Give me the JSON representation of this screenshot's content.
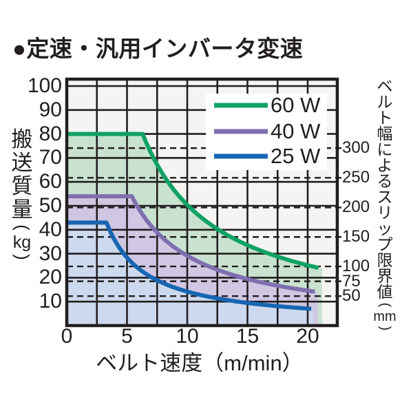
{
  "title": "●定速・汎用インバータ変速",
  "colors": {
    "page_bg": "#FFFFFF",
    "plot_bg": "#F4F4F2",
    "grid": "#221E1F",
    "text": "#221E1F",
    "legend_bg": "#FFFFFF"
  },
  "chart_data": {
    "type": "area",
    "title": "定速・汎用インバータ変速",
    "xlabel": "ベルト速度（m/min）",
    "ylabel_left": "搬送質量",
    "ylabel_left_unit": "kg",
    "ylabel_right": "ベルト幅によるスリップ限界値",
    "ylabel_right_unit": "mm",
    "xlim": [
      0,
      22.4
    ],
    "ylim": [
      0,
      103
    ],
    "x_ticks": [
      0,
      5,
      10,
      15,
      20
    ],
    "y_ticks": [
      10,
      20,
      30,
      40,
      50,
      60,
      70,
      80,
      90,
      100
    ],
    "grid_x_step_m_min": 2.5,
    "grid_y_step_kg": 10,
    "grid": "on",
    "legend_position": "top-right",
    "series": [
      {
        "name": "60 W",
        "color": "#0FA264",
        "fill": "#C8E2CF",
        "flat_mass_kg": 80,
        "flat_until_v": 6.3,
        "curve_end_v": 20.9,
        "fill_end_v": 21.2,
        "points": [
          [
            0,
            80
          ],
          [
            6.3,
            80
          ],
          [
            8,
            63
          ],
          [
            10,
            50.4
          ],
          [
            12.5,
            40.3
          ],
          [
            15,
            33.6
          ],
          [
            17.5,
            28.8
          ],
          [
            20,
            25.2
          ],
          [
            20.9,
            24.1
          ]
        ]
      },
      {
        "name": "40 W",
        "color": "#7F6FB0",
        "fill": "#D0C7E3",
        "flat_mass_kg": 54,
        "flat_until_v": 5.4,
        "curve_end_v": 20.6,
        "fill_end_v": 20.85,
        "points": [
          [
            0,
            54
          ],
          [
            5.4,
            54
          ],
          [
            7.5,
            38.9
          ],
          [
            10,
            29.2
          ],
          [
            12.5,
            23.3
          ],
          [
            15,
            19.4
          ],
          [
            17.5,
            16.7
          ],
          [
            20,
            14.6
          ],
          [
            20.6,
            14.2
          ]
        ]
      },
      {
        "name": "25 W",
        "color": "#1766B2",
        "fill": "#CCD9EE",
        "flat_mass_kg": 43,
        "flat_until_v": 3.3,
        "curve_end_v": 20.3,
        "fill_end_v": 20.45,
        "points": [
          [
            0,
            43
          ],
          [
            3.3,
            43
          ],
          [
            5,
            28.4
          ],
          [
            7.5,
            18.9
          ],
          [
            10,
            14.2
          ],
          [
            12.5,
            11.4
          ],
          [
            15,
            9.5
          ],
          [
            17.5,
            8.1
          ],
          [
            20,
            7.1
          ],
          [
            20.3,
            7.0
          ]
        ]
      }
    ],
    "right_axis_ticks": [
      {
        "label": "300",
        "mass_kg": 74.1
      },
      {
        "label": "250",
        "mass_kg": 61.7
      },
      {
        "label": "200",
        "mass_kg": 49.3
      },
      {
        "label": "150",
        "mass_kg": 37.0
      },
      {
        "label": "100",
        "mass_kg": 24.7
      },
      {
        "label": "75",
        "mass_kg": 18.5
      },
      {
        "label": "50",
        "mass_kg": 12.3
      }
    ]
  }
}
